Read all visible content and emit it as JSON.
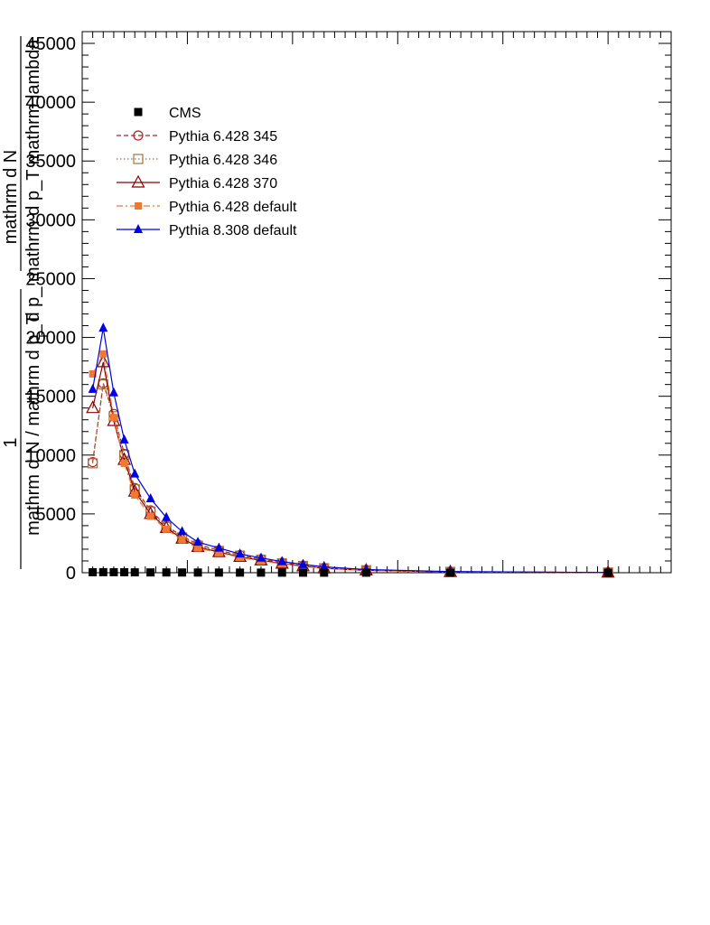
{
  "chart_data": {
    "type": "line",
    "title": "",
    "xlabel": "",
    "ylabel": "mathrm d N / mathrm d p_T",
    "ylabel_parts": {
      "numerator_1": "1",
      "denominator_1": "mathrm d N / mathrm d p_T",
      "numerator_2": "mathrm d N",
      "denominator_2": "d p_ mathrm d p_T mathrm lambda",
      "subscript": "T"
    },
    "ylim": [
      0,
      46000
    ],
    "yticks": [
      0,
      5000,
      10000,
      15000,
      20000,
      25000,
      30000,
      35000,
      40000,
      45000
    ],
    "ytick_labels": [
      "0",
      "5000",
      "10000",
      "15000",
      "20000",
      "25000",
      "30000",
      "35000",
      "40000",
      "45000"
    ],
    "xlim": [
      0,
      28
    ],
    "x": [
      0.5,
      1.0,
      1.5,
      2.0,
      2.5,
      3.25,
      4.0,
      4.75,
      5.5,
      6.5,
      7.5,
      8.5,
      9.5,
      10.5,
      11.5,
      13.5,
      17.5,
      25.0
    ],
    "legend_position": "top-left",
    "grid": false,
    "series": [
      {
        "name": "CMS",
        "marker": "filled-square",
        "line": "none",
        "color": "#000000",
        "values": [
          40,
          45,
          42,
          38,
          30,
          25,
          22,
          18,
          15,
          12,
          9,
          7,
          5,
          4,
          3,
          2,
          1,
          0.3
        ]
      },
      {
        "name": "Pythia 6.428 345",
        "marker": "open-circle",
        "line": "dashed",
        "color": "#b22222",
        "values": [
          9400,
          16100,
          13500,
          10100,
          7200,
          5300,
          4000,
          3100,
          2400,
          1900,
          1500,
          1150,
          850,
          600,
          400,
          220,
          80,
          15
        ]
      },
      {
        "name": "Pythia 6.428 346",
        "marker": "open-square",
        "line": "dotted",
        "color": "#a0783c",
        "values": [
          9300,
          16000,
          13300,
          10000,
          7100,
          5200,
          3900,
          3000,
          2300,
          1850,
          1450,
          1100,
          800,
          580,
          380,
          210,
          75,
          14
        ]
      },
      {
        "name": "Pythia 6.428 370",
        "marker": "open-triangle",
        "line": "solid",
        "color": "#8b0000",
        "values": [
          14000,
          17900,
          12900,
          9600,
          6900,
          5000,
          3800,
          2900,
          2200,
          1750,
          1350,
          1050,
          780,
          550,
          370,
          200,
          70,
          13
        ]
      },
      {
        "name": "Pythia 6.428 default",
        "marker": "filled-square-small",
        "line": "dashdot",
        "color": "#f07830",
        "values": [
          16900,
          18600,
          13200,
          9300,
          6600,
          4800,
          3700,
          2800,
          2100,
          1700,
          1300,
          1000,
          750,
          530,
          360,
          190,
          68,
          12
        ]
      },
      {
        "name": "Pythia 8.308 default",
        "marker": "filled-triangle",
        "line": "solid",
        "color": "#0000e0",
        "values": [
          15600,
          20800,
          15300,
          11300,
          8400,
          6300,
          4700,
          3500,
          2600,
          2100,
          1600,
          1250,
          950,
          700,
          500,
          270,
          100,
          18
        ]
      }
    ]
  }
}
